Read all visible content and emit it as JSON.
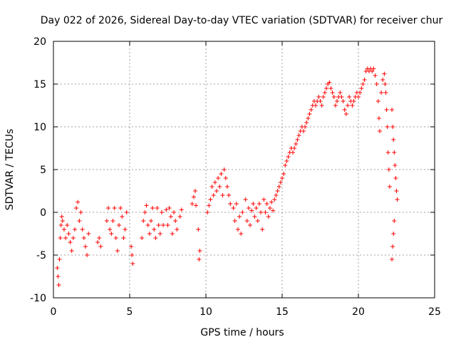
{
  "chart_data": {
    "type": "scatter",
    "title": "Day 022 of 2026, Sidereal Day-to-day VTEC variation (SDTVAR) for receiver chur",
    "xlabel": "GPS time / hours",
    "ylabel": "SDTVAR / TECUs",
    "xlim": [
      0,
      25
    ],
    "ylim": [
      -10,
      20
    ],
    "xticks": [
      0,
      5,
      10,
      15,
      20,
      25
    ],
    "yticks": [
      -10,
      -5,
      0,
      5,
      10,
      15,
      20
    ],
    "grid": true,
    "marker": "+",
    "color": "#ff0000",
    "series": [
      {
        "name": "SDTVAR",
        "points": [
          [
            0.25,
            -6.5
          ],
          [
            0.3,
            -7.5
          ],
          [
            0.35,
            -8.5
          ],
          [
            0.4,
            -5.5
          ],
          [
            0.45,
            -3
          ],
          [
            0.5,
            -1.5
          ],
          [
            0.55,
            -0.5
          ],
          [
            0.6,
            -1
          ],
          [
            0.7,
            -2
          ],
          [
            0.8,
            -3
          ],
          [
            0.9,
            -1.5
          ],
          [
            1.0,
            -2.5
          ],
          [
            1.1,
            -3.5
          ],
          [
            1.2,
            -4.5
          ],
          [
            1.3,
            -3
          ],
          [
            1.4,
            -2
          ],
          [
            1.5,
            0.5
          ],
          [
            1.6,
            1.2
          ],
          [
            1.7,
            -1
          ],
          [
            1.8,
            0
          ],
          [
            1.9,
            -2
          ],
          [
            2.0,
            -3
          ],
          [
            2.1,
            -4
          ],
          [
            2.2,
            -5
          ],
          [
            2.3,
            -2.5
          ],
          [
            2.9,
            -3.5
          ],
          [
            3.0,
            -3
          ],
          [
            3.1,
            -4
          ],
          [
            3.5,
            -1
          ],
          [
            3.6,
            0.5
          ],
          [
            3.7,
            -2
          ],
          [
            3.8,
            -2.5
          ],
          [
            3.9,
            -1
          ],
          [
            4.0,
            0.5
          ],
          [
            4.1,
            -3
          ],
          [
            4.2,
            -4.5
          ],
          [
            4.3,
            -1.5
          ],
          [
            4.4,
            0.5
          ],
          [
            4.5,
            -0.5
          ],
          [
            4.6,
            -3
          ],
          [
            4.7,
            -2
          ],
          [
            4.8,
            0
          ],
          [
            5.1,
            -4
          ],
          [
            5.15,
            -5
          ],
          [
            5.2,
            -6
          ],
          [
            5.8,
            -3
          ],
          [
            5.9,
            -1
          ],
          [
            6.0,
            0
          ],
          [
            6.1,
            0.8
          ],
          [
            6.2,
            -1.5
          ],
          [
            6.3,
            -2.5
          ],
          [
            6.4,
            -1
          ],
          [
            6.5,
            0.5
          ],
          [
            6.6,
            -2
          ],
          [
            6.7,
            -3
          ],
          [
            6.8,
            0.5
          ],
          [
            6.9,
            -1.5
          ],
          [
            7.0,
            -2.5
          ],
          [
            7.1,
            0
          ],
          [
            7.2,
            -1.5
          ],
          [
            7.4,
            0.3
          ],
          [
            7.5,
            -1.5
          ],
          [
            7.6,
            0.5
          ],
          [
            7.7,
            -0.5
          ],
          [
            7.8,
            -2.5
          ],
          [
            7.9,
            0
          ],
          [
            8.0,
            -1
          ],
          [
            8.1,
            -2
          ],
          [
            8.3,
            -0.5
          ],
          [
            8.4,
            0.3
          ],
          [
            9.1,
            1
          ],
          [
            9.2,
            1.8
          ],
          [
            9.3,
            2.5
          ],
          [
            9.35,
            0.8
          ],
          [
            9.5,
            -2
          ],
          [
            9.55,
            -5.5
          ],
          [
            9.6,
            -4.5
          ],
          [
            10.1,
            0
          ],
          [
            10.2,
            0.8
          ],
          [
            10.3,
            1.5
          ],
          [
            10.4,
            3
          ],
          [
            10.5,
            2
          ],
          [
            10.6,
            3.5
          ],
          [
            10.7,
            2.5
          ],
          [
            10.8,
            4
          ],
          [
            10.9,
            3
          ],
          [
            11.0,
            4.5
          ],
          [
            11.1,
            2
          ],
          [
            11.2,
            5
          ],
          [
            11.3,
            4
          ],
          [
            11.4,
            3
          ],
          [
            11.5,
            2
          ],
          [
            11.6,
            1
          ],
          [
            11.8,
            0.5
          ],
          [
            11.9,
            -1
          ],
          [
            12.0,
            1
          ],
          [
            12.1,
            -2
          ],
          [
            12.2,
            -0.5
          ],
          [
            12.3,
            -2.5
          ],
          [
            12.4,
            0
          ],
          [
            12.6,
            1.5
          ],
          [
            12.7,
            -1
          ],
          [
            12.8,
            0.5
          ],
          [
            12.9,
            -1.5
          ],
          [
            13.0,
            0.2
          ],
          [
            13.1,
            1
          ],
          [
            13.2,
            -0.5
          ],
          [
            13.3,
            0.5
          ],
          [
            13.4,
            -1
          ],
          [
            13.5,
            1
          ],
          [
            13.6,
            0
          ],
          [
            13.7,
            -2
          ],
          [
            13.8,
            1.5
          ],
          [
            13.9,
            0
          ],
          [
            14.0,
            1
          ],
          [
            14.1,
            -0.5
          ],
          [
            14.2,
            0.5
          ],
          [
            14.3,
            1.2
          ],
          [
            14.4,
            0.2
          ],
          [
            14.5,
            1.5
          ],
          [
            14.6,
            2
          ],
          [
            14.7,
            2.5
          ],
          [
            14.8,
            3
          ],
          [
            14.9,
            3.5
          ],
          [
            15.0,
            4
          ],
          [
            15.1,
            4.5
          ],
          [
            15.2,
            5.5
          ],
          [
            15.3,
            6
          ],
          [
            15.4,
            6.5
          ],
          [
            15.5,
            7
          ],
          [
            15.6,
            7.5
          ],
          [
            15.7,
            7
          ],
          [
            15.8,
            7.5
          ],
          [
            15.9,
            8
          ],
          [
            16.0,
            8.5
          ],
          [
            16.1,
            9
          ],
          [
            16.2,
            9.5
          ],
          [
            16.3,
            10
          ],
          [
            16.4,
            9.5
          ],
          [
            16.5,
            10
          ],
          [
            16.6,
            10.5
          ],
          [
            16.7,
            11
          ],
          [
            16.8,
            11.5
          ],
          [
            16.9,
            12
          ],
          [
            17.0,
            12.5
          ],
          [
            17.1,
            13
          ],
          [
            17.2,
            12.5
          ],
          [
            17.3,
            13
          ],
          [
            17.4,
            13.5
          ],
          [
            17.5,
            13
          ],
          [
            17.6,
            12.5
          ],
          [
            17.7,
            13.5
          ],
          [
            17.8,
            14
          ],
          [
            17.9,
            14.5
          ],
          [
            18.0,
            15
          ],
          [
            18.1,
            15.2
          ],
          [
            18.2,
            14.5
          ],
          [
            18.3,
            14
          ],
          [
            18.4,
            13.5
          ],
          [
            18.5,
            12.5
          ],
          [
            18.6,
            13
          ],
          [
            18.7,
            13.5
          ],
          [
            18.8,
            14
          ],
          [
            18.9,
            13.5
          ],
          [
            19.0,
            13
          ],
          [
            19.1,
            12
          ],
          [
            19.2,
            11.5
          ],
          [
            19.3,
            12.5
          ],
          [
            19.4,
            13.5
          ],
          [
            19.5,
            13
          ],
          [
            19.6,
            12.5
          ],
          [
            19.7,
            13
          ],
          [
            19.8,
            13.5
          ],
          [
            19.9,
            14
          ],
          [
            20.0,
            13.5
          ],
          [
            20.1,
            14
          ],
          [
            20.2,
            14.5
          ],
          [
            20.3,
            15
          ],
          [
            20.4,
            15.5
          ],
          [
            20.5,
            16.5
          ],
          [
            20.6,
            16.8
          ],
          [
            20.7,
            16.5
          ],
          [
            20.8,
            16.8
          ],
          [
            20.9,
            16.5
          ],
          [
            21.0,
            16.8
          ],
          [
            21.1,
            16
          ],
          [
            21.2,
            15
          ],
          [
            21.3,
            13
          ],
          [
            21.35,
            11
          ],
          [
            21.4,
            9.5
          ],
          [
            21.5,
            14
          ],
          [
            21.6,
            15.5
          ],
          [
            21.7,
            16.2
          ],
          [
            21.75,
            15
          ],
          [
            21.8,
            14
          ],
          [
            21.85,
            12
          ],
          [
            21.9,
            10
          ],
          [
            21.95,
            7
          ],
          [
            22.0,
            5
          ],
          [
            22.05,
            3
          ],
          [
            22.2,
            -5.5
          ],
          [
            22.25,
            -4
          ],
          [
            22.3,
            -2.5
          ],
          [
            22.35,
            -1
          ],
          [
            22.2,
            12
          ],
          [
            22.25,
            10
          ],
          [
            22.3,
            8.5
          ],
          [
            22.35,
            7
          ],
          [
            22.4,
            5.5
          ],
          [
            22.45,
            4
          ],
          [
            22.5,
            2.5
          ],
          [
            22.55,
            1.5
          ]
        ]
      }
    ]
  }
}
